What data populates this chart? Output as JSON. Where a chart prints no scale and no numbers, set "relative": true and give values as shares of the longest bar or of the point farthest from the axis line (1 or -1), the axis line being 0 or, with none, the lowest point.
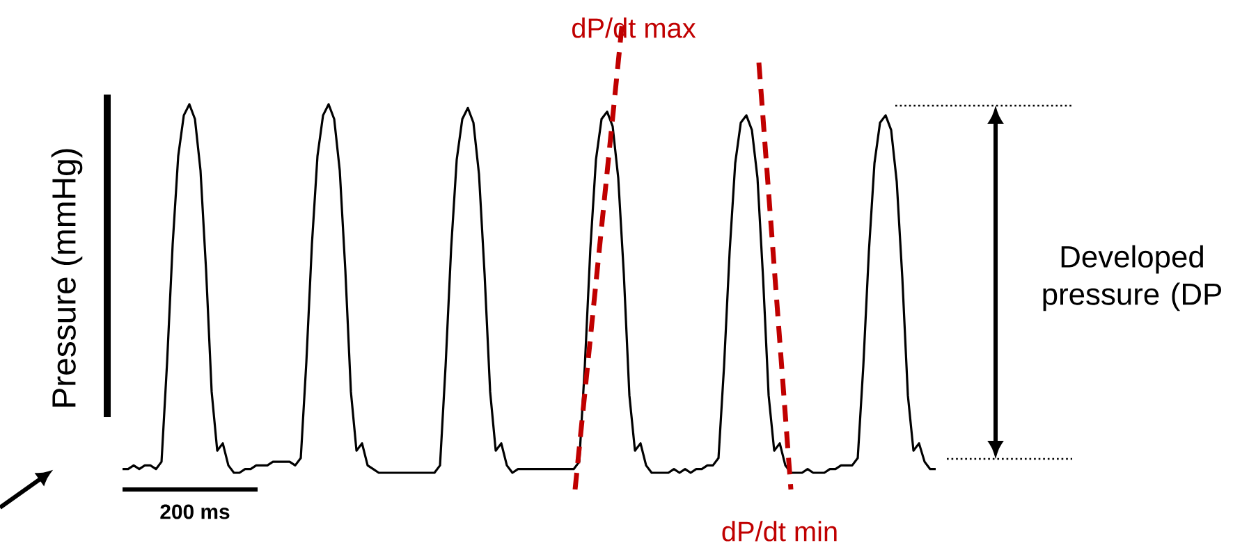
{
  "chart_data": {
    "type": "line",
    "relative": true,
    "ylabel": "Pressure (mmHg)",
    "annotations": [
      "dP/dt max",
      "dP/dt min",
      "200 ms",
      "Developed pressure (DP"
    ],
    "categories": [
      null,
      null,
      null,
      null,
      null,
      null,
      null,
      null,
      null,
      null,
      null,
      null,
      null,
      null,
      null,
      null,
      null,
      null,
      null,
      null,
      null,
      null,
      null,
      null,
      null,
      null,
      null,
      null,
      null,
      null,
      null,
      null,
      null,
      null,
      null,
      null,
      null,
      null,
      null,
      null,
      null,
      null,
      null,
      null,
      null,
      null,
      null,
      null,
      null,
      null,
      null,
      null,
      null,
      null,
      null,
      null,
      null,
      null,
      null,
      null,
      null,
      null,
      null,
      null,
      null,
      null,
      null,
      null,
      null,
      null,
      null,
      null,
      null,
      null,
      null,
      null,
      null,
      null,
      null,
      null,
      null,
      null,
      null,
      null,
      null,
      null,
      null,
      null,
      null,
      null,
      null,
      null,
      null,
      null,
      null,
      null,
      null,
      null,
      null,
      null,
      null,
      null,
      null,
      null,
      null,
      null,
      null,
      null,
      null,
      null,
      null,
      null,
      null,
      null,
      null,
      null,
      null,
      null,
      null,
      null,
      null,
      null,
      null,
      null,
      null,
      null,
      null,
      null,
      null,
      null,
      null,
      null,
      null,
      null,
      null,
      null,
      null,
      null,
      null,
      null,
      null,
      null,
      null,
      null,
      null,
      null,
      null
    ],
    "series": [
      {
        "color": "#000000",
        "values": [
          0.01,
          0.01,
          0.02,
          0.01,
          0.02,
          0.02,
          0.01,
          0.03,
          0.3,
          0.62,
          0.86,
          0.97,
          1.0,
          0.96,
          0.82,
          0.55,
          0.22,
          0.06,
          0.08,
          0.02,
          0.0,
          0.0,
          0.01,
          0.01,
          0.02,
          0.02,
          0.02,
          0.03,
          0.03,
          0.03,
          0.03,
          0.02,
          0.04,
          0.3,
          0.62,
          0.86,
          0.97,
          1.0,
          0.96,
          0.82,
          0.55,
          0.22,
          0.06,
          0.08,
          0.02,
          0.01,
          0.0,
          0.0,
          0.0,
          0.0,
          0.0,
          0.0,
          0.0,
          0.0,
          0.0,
          0.0,
          0.0,
          0.02,
          0.29,
          0.61,
          0.85,
          0.96,
          0.99,
          0.95,
          0.81,
          0.54,
          0.22,
          0.06,
          0.08,
          0.02,
          0.0,
          0.01,
          0.01,
          0.01,
          0.01,
          0.01,
          0.01,
          0.01,
          0.01,
          0.01,
          0.01,
          0.01,
          0.03,
          0.29,
          0.61,
          0.85,
          0.96,
          0.98,
          0.94,
          0.8,
          0.54,
          0.21,
          0.06,
          0.08,
          0.02,
          0.0,
          0.0,
          0.0,
          0.0,
          0.01,
          0.0,
          0.01,
          0.0,
          0.01,
          0.01,
          0.02,
          0.02,
          0.04,
          0.29,
          0.6,
          0.84,
          0.95,
          0.97,
          0.93,
          0.8,
          0.53,
          0.21,
          0.06,
          0.08,
          0.02,
          0.0,
          0.0,
          0.0,
          0.01,
          0.0,
          0.0,
          0.0,
          0.01,
          0.01,
          0.02,
          0.02,
          0.02,
          0.04,
          0.29,
          0.6,
          0.84,
          0.95,
          0.97,
          0.93,
          0.79,
          0.53,
          0.21,
          0.06,
          0.08,
          0.03,
          0.01,
          0.01
        ]
      }
    ]
  }
}
